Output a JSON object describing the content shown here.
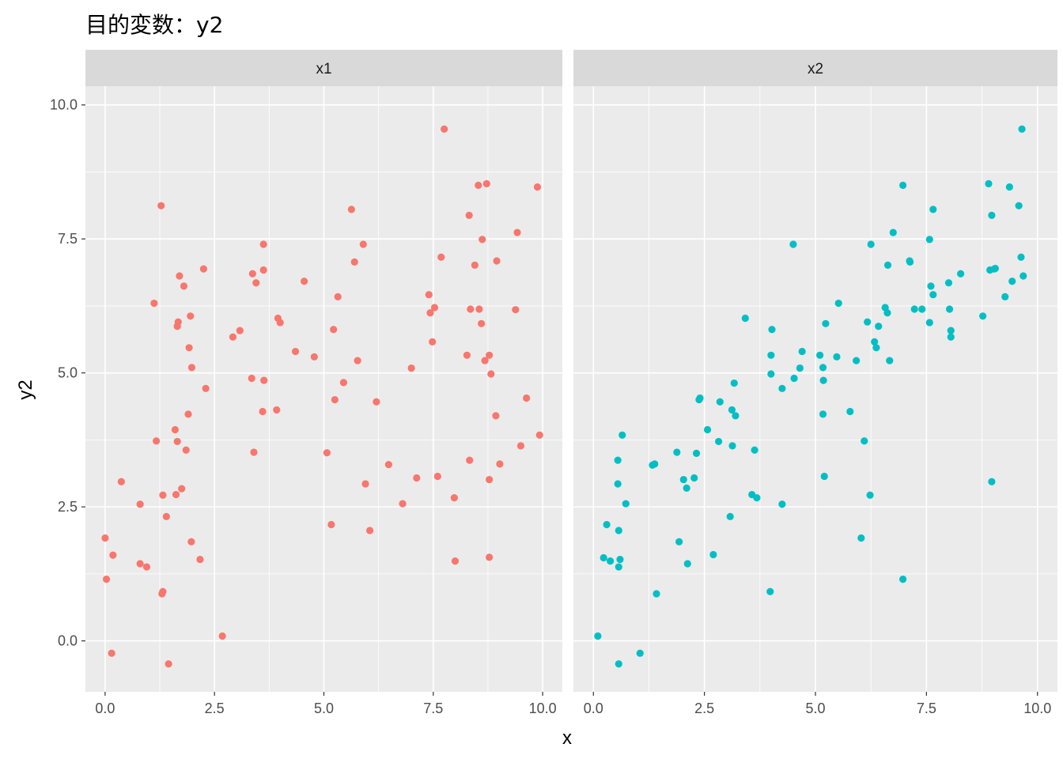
{
  "title": "目的変数：y2",
  "chart_data": {
    "type": "scatter",
    "facet_by": "variable",
    "xlabel": "x",
    "ylabel": "y2",
    "xlim": [
      -0.45,
      10.45
    ],
    "ylim": [
      -0.95,
      10.35
    ],
    "x_ticks": [
      0.0,
      2.5,
      5.0,
      7.5,
      10.0
    ],
    "x_tick_labels": [
      "0.0",
      "2.5",
      "5.0",
      "7.5",
      "10.0"
    ],
    "y_ticks": [
      0.0,
      2.5,
      5.0,
      7.5,
      10.0
    ],
    "y_tick_labels": [
      "0.0",
      "2.5",
      "5.0",
      "7.5",
      "10.0"
    ],
    "grid": true,
    "legend": "none",
    "panels": [
      {
        "label": "x1",
        "color": "#F8766D",
        "points": [
          [
            0.0,
            1.92
          ],
          [
            0.03,
            1.15
          ],
          [
            0.15,
            -0.23
          ],
          [
            0.18,
            1.6
          ],
          [
            0.37,
            2.97
          ],
          [
            0.8,
            2.55
          ],
          [
            0.8,
            1.44
          ],
          [
            0.95,
            1.38
          ],
          [
            1.12,
            6.3
          ],
          [
            1.17,
            3.73
          ],
          [
            1.28,
            8.12
          ],
          [
            1.3,
            0.88
          ],
          [
            1.32,
            0.92
          ],
          [
            1.32,
            2.72
          ],
          [
            1.4,
            2.32
          ],
          [
            1.45,
            -0.43
          ],
          [
            1.6,
            3.94
          ],
          [
            1.62,
            2.73
          ],
          [
            1.65,
            3.72
          ],
          [
            1.65,
            5.87
          ],
          [
            1.67,
            5.95
          ],
          [
            1.7,
            6.81
          ],
          [
            1.75,
            2.84
          ],
          [
            1.8,
            6.62
          ],
          [
            1.85,
            3.56
          ],
          [
            1.9,
            4.23
          ],
          [
            1.92,
            5.47
          ],
          [
            1.95,
            6.06
          ],
          [
            1.97,
            1.85
          ],
          [
            1.98,
            5.1
          ],
          [
            2.17,
            1.52
          ],
          [
            2.25,
            6.94
          ],
          [
            2.3,
            4.71
          ],
          [
            2.68,
            0.09
          ],
          [
            2.92,
            5.67
          ],
          [
            3.08,
            5.79
          ],
          [
            3.35,
            4.9
          ],
          [
            3.37,
            6.85
          ],
          [
            3.4,
            3.52
          ],
          [
            3.45,
            6.68
          ],
          [
            3.6,
            4.28
          ],
          [
            3.62,
            6.92
          ],
          [
            3.62,
            7.4
          ],
          [
            3.63,
            4.86
          ],
          [
            3.92,
            4.31
          ],
          [
            3.95,
            6.02
          ],
          [
            4.0,
            5.94
          ],
          [
            4.35,
            5.4
          ],
          [
            4.55,
            6.71
          ],
          [
            4.78,
            5.3
          ],
          [
            5.07,
            3.51
          ],
          [
            5.17,
            2.17
          ],
          [
            5.22,
            5.81
          ],
          [
            5.25,
            4.5
          ],
          [
            5.32,
            6.42
          ],
          [
            5.45,
            4.82
          ],
          [
            5.63,
            8.05
          ],
          [
            5.7,
            7.07
          ],
          [
            5.77,
            5.23
          ],
          [
            5.9,
            7.4
          ],
          [
            5.95,
            2.93
          ],
          [
            6.05,
            2.06
          ],
          [
            6.2,
            4.46
          ],
          [
            6.48,
            3.29
          ],
          [
            6.8,
            2.56
          ],
          [
            7.0,
            5.09
          ],
          [
            7.12,
            3.04
          ],
          [
            7.4,
            6.46
          ],
          [
            7.43,
            6.12
          ],
          [
            7.48,
            5.58
          ],
          [
            7.53,
            6.22
          ],
          [
            7.6,
            3.07
          ],
          [
            7.68,
            7.16
          ],
          [
            7.75,
            9.55
          ],
          [
            7.98,
            2.67
          ],
          [
            8.0,
            1.49
          ],
          [
            8.27,
            5.33
          ],
          [
            8.32,
            7.94
          ],
          [
            8.33,
            3.37
          ],
          [
            8.35,
            6.19
          ],
          [
            8.45,
            7.01
          ],
          [
            8.53,
            8.5
          ],
          [
            8.55,
            6.19
          ],
          [
            8.6,
            5.92
          ],
          [
            8.62,
            7.49
          ],
          [
            8.68,
            5.23
          ],
          [
            8.72,
            8.53
          ],
          [
            8.78,
            1.56
          ],
          [
            8.78,
            3.01
          ],
          [
            8.78,
            5.33
          ],
          [
            8.82,
            4.98
          ],
          [
            8.93,
            4.2
          ],
          [
            8.95,
            7.09
          ],
          [
            9.02,
            3.3
          ],
          [
            9.38,
            6.18
          ],
          [
            9.42,
            7.62
          ],
          [
            9.5,
            3.64
          ],
          [
            9.63,
            4.53
          ],
          [
            9.88,
            8.47
          ],
          [
            9.93,
            3.84
          ]
        ]
      },
      {
        "label": "x2",
        "color": "#00BFC4",
        "points": [
          [
            0.1,
            0.09
          ],
          [
            0.23,
            1.55
          ],
          [
            0.3,
            2.17
          ],
          [
            0.38,
            1.49
          ],
          [
            0.55,
            3.37
          ],
          [
            0.55,
            2.93
          ],
          [
            0.57,
            -0.43
          ],
          [
            0.57,
            1.38
          ],
          [
            0.57,
            2.06
          ],
          [
            0.6,
            1.52
          ],
          [
            0.65,
            3.84
          ],
          [
            0.73,
            2.56
          ],
          [
            1.05,
            -0.23
          ],
          [
            1.33,
            3.28
          ],
          [
            1.38,
            3.3
          ],
          [
            1.42,
            0.88
          ],
          [
            1.88,
            3.52
          ],
          [
            1.93,
            1.85
          ],
          [
            2.03,
            3.01
          ],
          [
            2.1,
            2.85
          ],
          [
            2.12,
            1.44
          ],
          [
            2.27,
            3.04
          ],
          [
            2.32,
            3.5
          ],
          [
            2.38,
            4.5
          ],
          [
            2.4,
            4.53
          ],
          [
            2.57,
            3.94
          ],
          [
            2.7,
            1.61
          ],
          [
            2.82,
            3.72
          ],
          [
            2.85,
            4.46
          ],
          [
            3.08,
            2.32
          ],
          [
            3.12,
            4.31
          ],
          [
            3.13,
            3.64
          ],
          [
            3.17,
            4.81
          ],
          [
            3.2,
            4.2
          ],
          [
            3.42,
            6.02
          ],
          [
            3.57,
            2.73
          ],
          [
            3.63,
            3.56
          ],
          [
            3.68,
            2.67
          ],
          [
            3.98,
            0.92
          ],
          [
            4.0,
            5.33
          ],
          [
            4.0,
            4.98
          ],
          [
            4.02,
            5.81
          ],
          [
            4.25,
            4.71
          ],
          [
            4.25,
            2.55
          ],
          [
            4.5,
            7.4
          ],
          [
            4.52,
            4.9
          ],
          [
            4.65,
            5.09
          ],
          [
            4.7,
            5.4
          ],
          [
            5.1,
            5.33
          ],
          [
            5.17,
            4.23
          ],
          [
            5.17,
            5.1
          ],
          [
            5.18,
            4.86
          ],
          [
            5.2,
            3.07
          ],
          [
            5.23,
            5.92
          ],
          [
            5.48,
            5.3
          ],
          [
            5.52,
            6.3
          ],
          [
            5.78,
            4.28
          ],
          [
            5.92,
            5.23
          ],
          [
            6.03,
            1.92
          ],
          [
            6.1,
            3.73
          ],
          [
            6.17,
            5.95
          ],
          [
            6.23,
            2.72
          ],
          [
            6.25,
            7.4
          ],
          [
            6.33,
            5.58
          ],
          [
            6.37,
            5.47
          ],
          [
            6.42,
            5.87
          ],
          [
            6.57,
            6.22
          ],
          [
            6.62,
            6.12
          ],
          [
            6.63,
            7.01
          ],
          [
            6.67,
            5.23
          ],
          [
            6.75,
            7.62
          ],
          [
            6.97,
            8.5
          ],
          [
            6.97,
            1.15
          ],
          [
            7.12,
            7.09
          ],
          [
            7.13,
            7.07
          ],
          [
            7.23,
            6.19
          ],
          [
            7.4,
            6.19
          ],
          [
            7.57,
            5.94
          ],
          [
            7.57,
            7.49
          ],
          [
            7.6,
            6.62
          ],
          [
            7.65,
            6.46
          ],
          [
            7.65,
            8.05
          ],
          [
            8.0,
            6.68
          ],
          [
            8.02,
            6.19
          ],
          [
            8.05,
            5.67
          ],
          [
            8.05,
            5.79
          ],
          [
            8.27,
            6.85
          ],
          [
            8.77,
            6.06
          ],
          [
            8.9,
            8.53
          ],
          [
            8.93,
            6.92
          ],
          [
            8.97,
            7.94
          ],
          [
            8.97,
            2.97
          ],
          [
            9.03,
            6.94
          ],
          [
            9.05,
            6.95
          ],
          [
            9.27,
            6.42
          ],
          [
            9.37,
            8.47
          ],
          [
            9.43,
            6.71
          ],
          [
            9.58,
            8.12
          ],
          [
            9.63,
            7.16
          ],
          [
            9.65,
            9.55
          ],
          [
            9.68,
            6.81
          ]
        ]
      }
    ]
  }
}
